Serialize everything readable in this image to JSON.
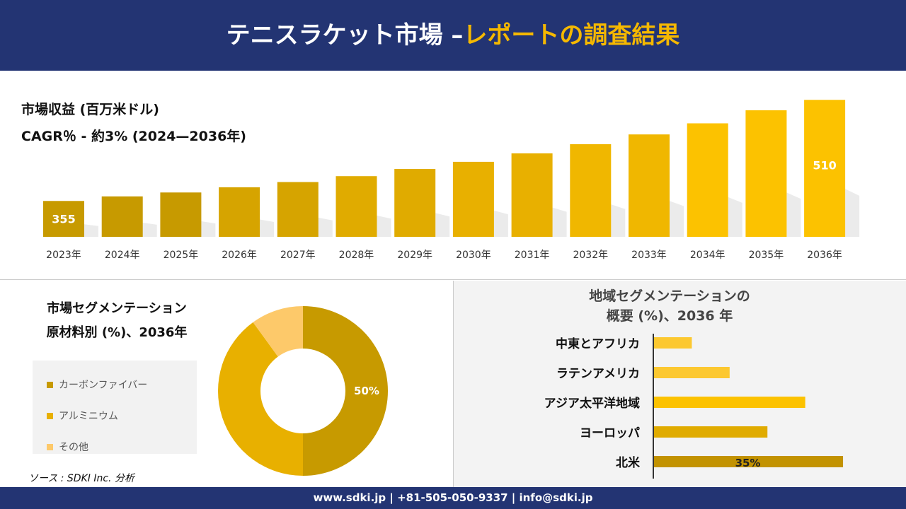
{
  "header": {
    "title_white": "テニスラケット市場 –",
    "title_yellow": "レポートの調査結果"
  },
  "revenue": {
    "title": "市場収益 (百万米ドル)",
    "cagr": "CAGR％ - 約3% (2024—2036年)"
  },
  "material": {
    "title_line1": "市場セグメンテーション",
    "title_line2": "原材料別 (%)、2036年"
  },
  "region": {
    "title_line1": "地域セグメンテーションの",
    "title_line2": "概要 (%)、2036 年"
  },
  "source": "ソース : SDKI Inc. 分析",
  "footer": "www.sdki.jp | +81-505-050-9337 | info@sdki.jp",
  "chart_data": [
    {
      "type": "bar",
      "title": "市場収益 (百万米ドル)",
      "categories": [
        "2023年",
        "2024年",
        "2025年",
        "2026年",
        "2027年",
        "2028年",
        "2029年",
        "2030年",
        "2031年",
        "2032年",
        "2033年",
        "2034年",
        "2035年",
        "2036年"
      ],
      "values": [
        355,
        362,
        368,
        376,
        384,
        393,
        404,
        415,
        428,
        442,
        457,
        474,
        494,
        510
      ],
      "data_labels": {
        "0": "355",
        "13": "510"
      },
      "colors": [
        "#c79a00",
        "#d6a400",
        "#e0ab00",
        "#e8b000",
        "#f0b700",
        "#fcc200"
      ]
    },
    {
      "type": "pie",
      "variant": "donut",
      "categories": [
        "カーボンファイバー",
        "アルミニウム",
        "その他"
      ],
      "values": [
        50,
        40,
        10
      ],
      "data_labels": {
        "0": "50%"
      },
      "colors": [
        "#c79a00",
        "#e8b000",
        "#fdc96a"
      ]
    },
    {
      "type": "bar",
      "orientation": "horizontal",
      "categories": [
        "中東とアフリカ",
        "ラテンアメリカ",
        "アジア太平洋地域",
        "ヨーロッパ",
        "北米"
      ],
      "values": [
        7,
        14,
        28,
        21,
        35
      ],
      "data_labels": {
        "4": "35%"
      },
      "colors": [
        "#fcc830",
        "#fcc830",
        "#fcc200",
        "#e0ab00",
        "#c29200"
      ]
    }
  ]
}
